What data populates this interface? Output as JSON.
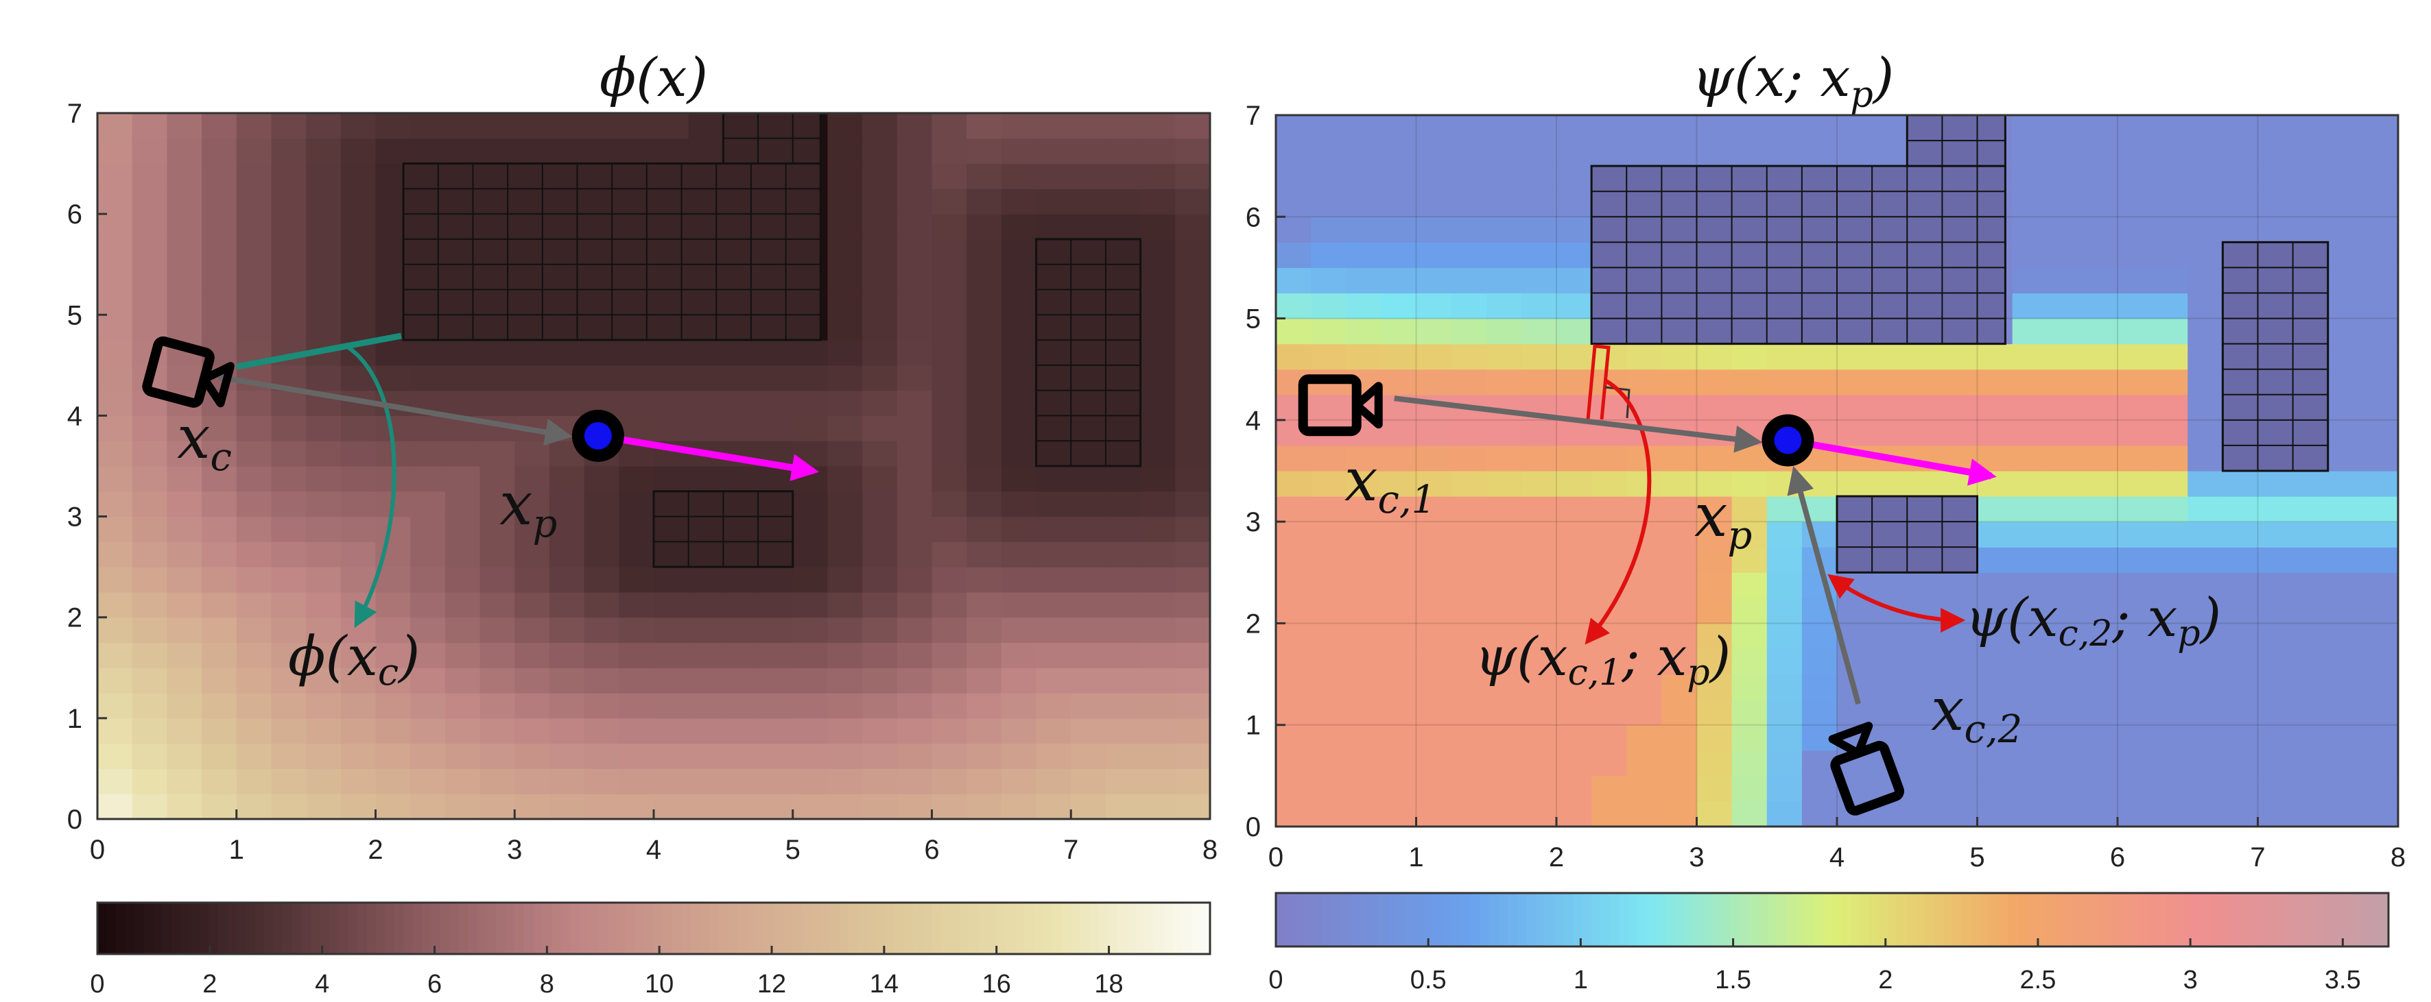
{
  "chart_data": [
    {
      "type": "heatmap",
      "title": "ϕ(x)",
      "xlim": [
        0,
        8
      ],
      "ylim": [
        0,
        7
      ],
      "xticks": [
        "0",
        "1",
        "2",
        "3",
        "4",
        "5",
        "6",
        "7",
        "8"
      ],
      "yticks": [
        "0",
        "1",
        "2",
        "3",
        "4",
        "5",
        "6",
        "7"
      ],
      "colorbar": {
        "range": [
          0,
          19.8
        ],
        "ticks": [
          "0",
          "2",
          "4",
          "6",
          "8",
          "10",
          "12",
          "14",
          "16",
          "18"
        ],
        "colors": [
          "#1a0a0c",
          "#4a2e30",
          "#8a5a5e",
          "#bf8585",
          "#d3a890",
          "#ddc79a",
          "#eae2ae",
          "#fbfbf5"
        ]
      },
      "obstacles": [
        {
          "x": [
            2.2,
            5.2
          ],
          "y": [
            4.75,
            6.5
          ]
        },
        {
          "x": [
            4.5,
            5.2
          ],
          "y": [
            6.5,
            7.0
          ]
        },
        {
          "x": [
            4.0,
            5.0
          ],
          "y": [
            2.5,
            3.25
          ]
        },
        {
          "x": [
            6.75,
            7.5
          ],
          "y": [
            3.5,
            5.75
          ]
        }
      ],
      "camera": {
        "x": 0.65,
        "y": 4.45
      },
      "target": {
        "x": 3.6,
        "y": 3.8
      },
      "target_heading_end": {
        "x": 5.15,
        "y": 3.45
      },
      "annotations": {
        "camera_label": "x",
        "camera_subscript": "c",
        "target_label": "x",
        "target_subscript": "p",
        "value_label_prefix": "ϕ(x",
        "value_label_subscript": "c",
        "value_label_suffix": ")"
      },
      "colors": {
        "arrow": "#666666",
        "heading": "#ff00ff",
        "annotation": "#1a8c7a"
      }
    },
    {
      "type": "heatmap",
      "title_prefix": "ψ(x; x",
      "title_subscript": "p",
      "title_suffix": ")",
      "xlim": [
        0,
        8
      ],
      "ylim": [
        0,
        7
      ],
      "xticks": [
        "0",
        "1",
        "2",
        "3",
        "4",
        "5",
        "6",
        "7",
        "8"
      ],
      "yticks": [
        "0",
        "1",
        "2",
        "3",
        "4",
        "5",
        "6",
        "7"
      ],
      "colorbar": {
        "range": [
          0,
          3.65
        ],
        "ticks": [
          "0",
          "0.5",
          "1",
          "1.5",
          "2",
          "2.5",
          "3",
          "3.5"
        ],
        "colors": [
          "#8080c8",
          "#6aa0ec",
          "#7ee6f2",
          "#dcf078",
          "#f2a868",
          "#f09090",
          "#c49fa8"
        ]
      },
      "obstacles": [
        {
          "x": [
            2.25,
            5.2
          ],
          "y": [
            4.75,
            6.5
          ]
        },
        {
          "x": [
            4.5,
            5.2
          ],
          "y": [
            6.5,
            7.0
          ]
        },
        {
          "x": [
            4.0,
            5.0
          ],
          "y": [
            2.5,
            3.25
          ]
        },
        {
          "x": [
            6.75,
            7.5
          ],
          "y": [
            3.5,
            5.75
          ]
        }
      ],
      "cameras": [
        {
          "x": 0.6,
          "y": 4.2
        },
        {
          "x": 4.25,
          "y": 0.6
        }
      ],
      "target": {
        "x": 3.65,
        "y": 3.8
      },
      "target_heading_end": {
        "x": 5.1,
        "y": 3.45
      },
      "annotations": {
        "camera1_label": "x",
        "camera1_subscript": "c,1",
        "camera2_label": "x",
        "camera2_subscript": "c,2",
        "target_label": "x",
        "target_subscript": "p",
        "value1_prefix": "ψ(x",
        "value1_subscript": "c,1",
        "value1_mid": "; x",
        "value1_sub2": "p",
        "value1_suffix": ")",
        "value2_prefix": "ψ(x",
        "value2_subscript": "c,2",
        "value2_mid": "; x",
        "value2_sub2": "p",
        "value2_suffix": ")"
      },
      "colors": {
        "arrow": "#666666",
        "heading": "#ff00ff",
        "annotation": "#e01010"
      }
    }
  ]
}
